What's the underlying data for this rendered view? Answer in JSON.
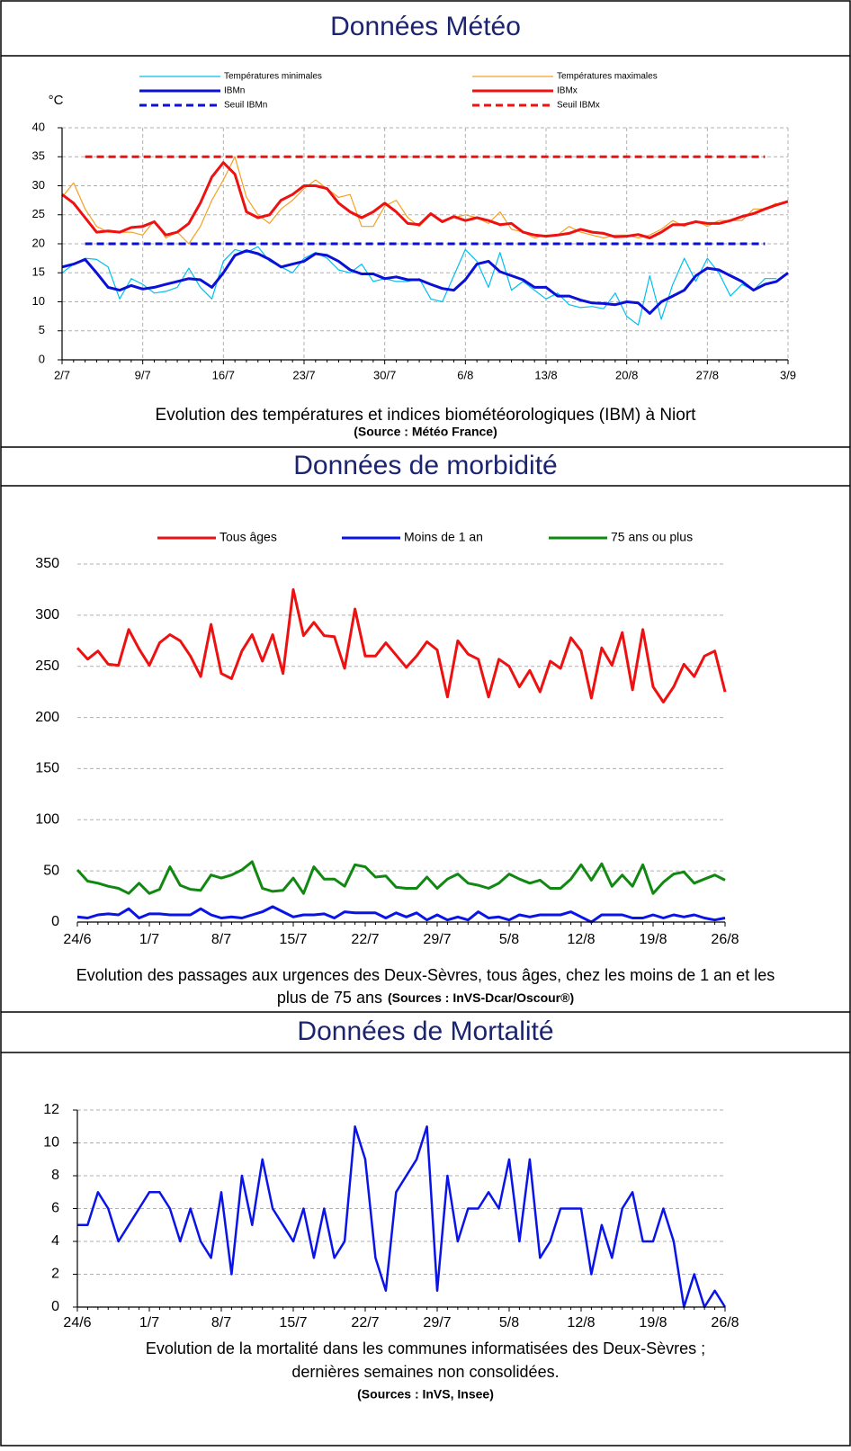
{
  "chart_data": [
    {
      "type": "line",
      "title": "Données Météo",
      "y_label": "°C",
      "caption": [
        "Evolution des températures et indices biométéorologiques (IBM) à Niort"
      ],
      "source": "(Source : Météo France)",
      "categories": [
        "2/7",
        null,
        null,
        null,
        null,
        null,
        null,
        "9/7",
        null,
        null,
        null,
        null,
        null,
        null,
        "16/7",
        null,
        null,
        null,
        null,
        null,
        null,
        "23/7",
        null,
        null,
        null,
        null,
        null,
        null,
        "30/7",
        null,
        null,
        null,
        null,
        null,
        null,
        "6/8",
        null,
        null,
        null,
        null,
        null,
        null,
        "13/8",
        null,
        null,
        null,
        null,
        null,
        null,
        "20/8",
        null,
        null,
        null,
        null,
        null,
        null,
        "27/8",
        null,
        null,
        null,
        null,
        null,
        null,
        "3/9"
      ],
      "ylim": [
        0,
        40
      ],
      "yticks": [
        0,
        5,
        10,
        15,
        20,
        25,
        30,
        35,
        40
      ],
      "grid": "both",
      "legend": "top",
      "series": [
        {
          "name": "Températures minimales",
          "color": "#00bff0",
          "line_style": "thin",
          "values": [
            15,
            16.5,
            17.5,
            17.3,
            16,
            10.5,
            14,
            13,
            11.5,
            11.8,
            12.5,
            15.8,
            12.5,
            10.5,
            17,
            19,
            18.5,
            19.5,
            17,
            16,
            15,
            17.5,
            18.5,
            17.5,
            15.5,
            15,
            16.5,
            13.5,
            14,
            13.5,
            13.5,
            14,
            10.5,
            10,
            14.5,
            19,
            17,
            12.5,
            18.5,
            12,
            13.5,
            12,
            10.5,
            11.5,
            9.5,
            9,
            9.2,
            8.8,
            11.5,
            7.5,
            6,
            14.5,
            7,
            13,
            17.5,
            13.5,
            17.5,
            15,
            11,
            13,
            12,
            14,
            14,
            null
          ]
        },
        {
          "name": "Températures maximales",
          "color": "#f5a020",
          "line_style": "thin",
          "values": [
            28,
            30.5,
            26,
            23,
            22,
            22,
            22,
            21.5,
            24,
            21,
            22,
            20,
            23,
            27.5,
            31,
            35,
            28,
            25,
            23.5,
            26,
            27.5,
            29.5,
            31,
            29.5,
            28,
            28.5,
            23,
            23,
            26.5,
            27.5,
            24.5,
            23,
            25,
            24,
            24.5,
            25,
            24.5,
            23.5,
            25.5,
            22.5,
            22,
            21,
            21.5,
            21.5,
            23,
            22,
            21.5,
            21,
            21.5,
            21.5,
            21,
            21.5,
            22.5,
            24,
            23,
            24,
            23,
            24,
            24,
            24,
            26,
            26,
            27,
            null
          ]
        },
        {
          "name": "IBMn",
          "color": "#0a10d8",
          "line_style": "thick",
          "values": [
            16,
            16.5,
            17.3,
            15,
            12.5,
            12,
            12.8,
            12.2,
            12.5,
            13,
            13.5,
            14,
            13.8,
            12.5,
            15,
            18,
            18.8,
            18.3,
            17.3,
            16,
            16.5,
            17,
            18.3,
            18,
            17,
            15.5,
            14.8,
            14.8,
            14,
            14.3,
            13.8,
            13.8,
            13,
            12.3,
            12,
            13.8,
            16.5,
            17,
            15.2,
            14.5,
            13.8,
            12.5,
            12.5,
            11,
            11,
            10.3,
            9.8,
            9.7,
            9.5,
            10,
            9.8,
            8,
            10,
            11,
            12,
            14.5,
            15.8,
            15.5,
            14.5,
            13.5,
            12,
            13,
            13.5,
            15
          ]
        },
        {
          "name": "IBMx",
          "color": "#ee1111",
          "line_style": "thick",
          "values": [
            28.5,
            27,
            24.5,
            22,
            22.2,
            22,
            22.8,
            23,
            23.8,
            21.5,
            22,
            23.5,
            27,
            31.5,
            34,
            32,
            25.5,
            24.5,
            25,
            27.5,
            28.5,
            30,
            30,
            29.5,
            27,
            25.5,
            24.5,
            25.5,
            27,
            25.5,
            23.5,
            23.3,
            25.2,
            23.8,
            24.7,
            24,
            24.5,
            24,
            23.3,
            23.5,
            22,
            21.5,
            21.3,
            21.5,
            21.8,
            22.5,
            22,
            21.8,
            21.2,
            21.3,
            21.6,
            21,
            22,
            23.3,
            23.3,
            23.8,
            23.5,
            23.5,
            24,
            24.7,
            25.2,
            26,
            26.7,
            27.3
          ]
        },
        {
          "name": "Seuil IBMn",
          "color": "#0a10d8",
          "line_style": "dashed",
          "values": [
            null,
            null,
            20,
            20,
            20,
            20,
            20,
            20,
            20,
            20,
            20,
            20,
            20,
            20,
            20,
            20,
            20,
            20,
            20,
            20,
            20,
            20,
            20,
            20,
            20,
            20,
            20,
            20,
            20,
            20,
            20,
            20,
            20,
            20,
            20,
            20,
            20,
            20,
            20,
            20,
            20,
            20,
            20,
            20,
            20,
            20,
            20,
            20,
            20,
            20,
            20,
            20,
            20,
            20,
            20,
            20,
            20,
            20,
            20,
            20,
            20,
            20,
            null,
            null
          ]
        },
        {
          "name": "Seuil IBMx",
          "color": "#ee1111",
          "line_style": "dashed",
          "values": [
            null,
            null,
            35,
            35,
            35,
            35,
            35,
            35,
            35,
            35,
            35,
            35,
            35,
            35,
            35,
            35,
            35,
            35,
            35,
            35,
            35,
            35,
            35,
            35,
            35,
            35,
            35,
            35,
            35,
            35,
            35,
            35,
            35,
            35,
            35,
            35,
            35,
            35,
            35,
            35,
            35,
            35,
            35,
            35,
            35,
            35,
            35,
            35,
            35,
            35,
            35,
            35,
            35,
            35,
            35,
            35,
            35,
            35,
            35,
            35,
            35,
            35,
            null,
            null
          ]
        }
      ]
    },
    {
      "type": "line",
      "title": "Données de morbidité",
      "caption": [
        "Evolution des passages aux urgences des Deux-Sèvres, tous âges, chez les moins de 1 an et les",
        "plus de 75 ans"
      ],
      "source": "(Sources : InVS-Dcar/Oscour®)",
      "categories": [
        "24/6",
        null,
        null,
        null,
        null,
        null,
        null,
        "1/7",
        null,
        null,
        null,
        null,
        null,
        null,
        "8/7",
        null,
        null,
        null,
        null,
        null,
        null,
        "15/7",
        null,
        null,
        null,
        null,
        null,
        null,
        "22/7",
        null,
        null,
        null,
        null,
        null,
        null,
        "29/7",
        null,
        null,
        null,
        null,
        null,
        null,
        "5/8",
        null,
        null,
        null,
        null,
        null,
        null,
        "12/8",
        null,
        null,
        null,
        null,
        null,
        null,
        "19/8",
        null,
        null,
        null,
        null,
        null,
        null,
        "26/8"
      ],
      "ylim": [
        0,
        350
      ],
      "yticks": [
        0,
        50,
        100,
        150,
        200,
        250,
        300,
        350
      ],
      "grid": "y",
      "legend": "top",
      "series": [
        {
          "name": "Tous âges",
          "color": "#ee1111",
          "line_style": "thick",
          "values": [
            268,
            257,
            265,
            252,
            251,
            286,
            267,
            251,
            273,
            281,
            275,
            260,
            240,
            291,
            243,
            238,
            265,
            281,
            255,
            281,
            243,
            325,
            280,
            293,
            280,
            279,
            248,
            306,
            260,
            260,
            273,
            261,
            249,
            260,
            274,
            266,
            220,
            275,
            262,
            257,
            220,
            257,
            250,
            230,
            246,
            225,
            255,
            248,
            278,
            265,
            219,
            268,
            251,
            283,
            227,
            286,
            230,
            215,
            230,
            252,
            240,
            260,
            265,
            225
          ]
        },
        {
          "name": "Moins de 1 an",
          "color": "#0a14e8",
          "line_style": "thick",
          "values": [
            5,
            4,
            7,
            8,
            7,
            13,
            4,
            8,
            8,
            7,
            7,
            7,
            13,
            7,
            4,
            5,
            4,
            7,
            10,
            15,
            10,
            5,
            7,
            7,
            8,
            4,
            10,
            9,
            9,
            9,
            4,
            9,
            5,
            9,
            2,
            7,
            2,
            5,
            2,
            10,
            4,
            5,
            2,
            7,
            5,
            7,
            7,
            7,
            10,
            5,
            0,
            7,
            7,
            7,
            4,
            4,
            7,
            4,
            7,
            5,
            7,
            4,
            2,
            4
          ]
        },
        {
          "name": "75 ans ou plus",
          "color": "#118811",
          "line_style": "thick",
          "values": [
            51,
            40,
            38,
            35,
            33,
            28,
            38,
            28,
            32,
            54,
            36,
            32,
            31,
            46,
            43,
            46,
            51,
            59,
            33,
            30,
            31,
            43,
            28,
            54,
            42,
            42,
            35,
            56,
            54,
            44,
            45,
            34,
            33,
            33,
            44,
            33,
            42,
            47,
            38,
            36,
            33,
            38,
            47,
            42,
            38,
            41,
            33,
            33,
            42,
            56,
            41,
            57,
            35,
            46,
            35,
            56,
            28,
            39,
            47,
            49,
            38,
            42,
            46,
            41
          ]
        }
      ]
    },
    {
      "type": "line",
      "title": "Données de Mortalité",
      "caption": [
        "Evolution de la mortalité dans les communes informatisées des Deux-Sèvres ;",
        "dernières semaines non consolidées."
      ],
      "source": "(Sources : InVS, Insee)",
      "categories": [
        "24/6",
        null,
        null,
        null,
        null,
        null,
        null,
        "1/7",
        null,
        null,
        null,
        null,
        null,
        null,
        "8/7",
        null,
        null,
        null,
        null,
        null,
        null,
        "15/7",
        null,
        null,
        null,
        null,
        null,
        null,
        "22/7",
        null,
        null,
        null,
        null,
        null,
        null,
        "29/7",
        null,
        null,
        null,
        null,
        null,
        null,
        "5/8",
        null,
        null,
        null,
        null,
        null,
        null,
        "12/8",
        null,
        null,
        null,
        null,
        null,
        null,
        "19/8",
        null,
        null,
        null,
        null,
        null,
        null,
        "26/8"
      ],
      "ylim": [
        0,
        12
      ],
      "yticks": [
        0,
        2,
        4,
        6,
        8,
        10,
        12
      ],
      "grid": "y",
      "series": [
        {
          "color": "#0a14e8",
          "line_style": "medium",
          "values": [
            5,
            5,
            7,
            6,
            4,
            5,
            6,
            7,
            7,
            6,
            4,
            6,
            4,
            3,
            7,
            2,
            8,
            5,
            9,
            6,
            5,
            4,
            6,
            3,
            6,
            3,
            4,
            11,
            9,
            3,
            1,
            7,
            8,
            9,
            11,
            1,
            8,
            4,
            6,
            6,
            7,
            6,
            9,
            4,
            9,
            3,
            4,
            6,
            6,
            6,
            2,
            5,
            3,
            6,
            7,
            4,
            4,
            6,
            4,
            0,
            2,
            0,
            1,
            0
          ]
        }
      ]
    }
  ]
}
